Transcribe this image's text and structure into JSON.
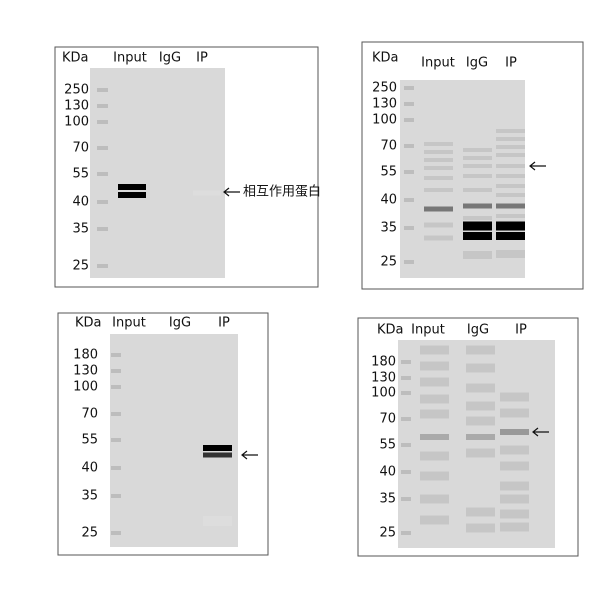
{
  "panels": [
    {
      "unit": "KDa",
      "lanes": [
        "Input",
        "IgG",
        "IP"
      ],
      "markers": [
        "250",
        "130",
        "100",
        "70",
        "55",
        "40",
        "35",
        "25"
      ],
      "annotation": "相互作用蛋白"
    },
    {
      "unit": "KDa",
      "lanes": [
        "Input",
        "IgG",
        "IP"
      ],
      "markers": [
        "250",
        "130",
        "100",
        "70",
        "55",
        "40",
        "35",
        "25"
      ]
    },
    {
      "unit": "KDa",
      "lanes": [
        "Input",
        "IgG",
        "IP"
      ],
      "markers": [
        "180",
        "130",
        "100",
        "70",
        "55",
        "40",
        "35",
        "25"
      ]
    },
    {
      "unit": "KDa",
      "lanes": [
        "Input",
        "IgG",
        "IP"
      ],
      "markers": [
        "180",
        "130",
        "100",
        "70",
        "55",
        "40",
        "35",
        "25"
      ]
    }
  ]
}
